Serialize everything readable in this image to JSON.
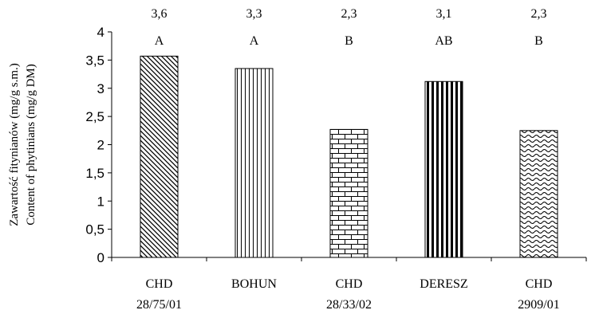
{
  "chart_data": {
    "type": "bar",
    "categories": [
      [
        "CHD",
        "28/75/01"
      ],
      [
        "BOHUN",
        ""
      ],
      [
        "CHD",
        "28/33/02"
      ],
      [
        "DERESZ",
        ""
      ],
      [
        "CHD",
        "2909/01"
      ]
    ],
    "values": [
      3.57,
      3.35,
      2.27,
      3.12,
      2.25
    ],
    "value_labels": [
      "3,6",
      "3,3",
      "2,3",
      "3,1",
      "2,3"
    ],
    "group_letters": [
      "A",
      "A",
      "B",
      "AB",
      "B"
    ],
    "patterns": [
      "diagonal-hatch",
      "vertical-lines",
      "brick",
      "bold-vertical-lines",
      "wave"
    ],
    "ylim": [
      0,
      4
    ],
    "yticks": [
      0,
      0.5,
      1,
      1.5,
      2,
      2.5,
      3,
      3.5,
      4
    ],
    "ytick_labels": [
      "0",
      "0,5",
      "1",
      "1,5",
      "2",
      "2,5",
      "3",
      "3,5",
      "4"
    ],
    "ylabel_line1": "Zawartość fitynianów (mg/g s.m.)",
    "ylabel_line2": "Content of phytinians (mg/g DM)",
    "xlabel": "",
    "grid": false,
    "colors": {
      "bar_fill": "#ffffff",
      "stroke": "#000000"
    }
  }
}
